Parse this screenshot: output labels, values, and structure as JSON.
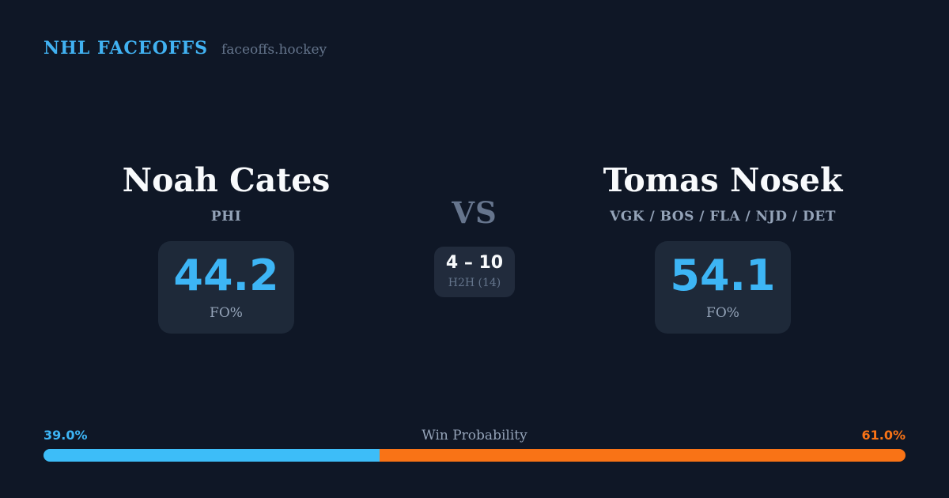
{
  "header": {
    "brand": "NHL FACEOFFS",
    "site": "faceoffs.hockey"
  },
  "matchup": {
    "player_left": {
      "name": "Noah Cates",
      "teams": "PHI",
      "stat_value": "44.2",
      "stat_label": "FO%"
    },
    "vs_label": "VS",
    "h2h": {
      "score": "4 – 10",
      "label": "H2H (14)"
    },
    "player_right": {
      "name": "Tomas Nosek",
      "teams": "VGK / BOS / FLA / NJD / DET",
      "stat_value": "54.1",
      "stat_label": "FO%"
    }
  },
  "win_probability": {
    "label": "Win Probability",
    "left_pct_label": "39.0%",
    "right_pct_label": "61.0%",
    "left_value": 39.0,
    "right_value": 61.0
  },
  "colors": {
    "background": "#0f1726",
    "card": "#1e2939",
    "accent_blue": "#3db5f5",
    "accent_orange": "#f97316",
    "text_white": "#f8fafc",
    "text_slate": "#94a3b8",
    "text_muted": "#64748b"
  }
}
